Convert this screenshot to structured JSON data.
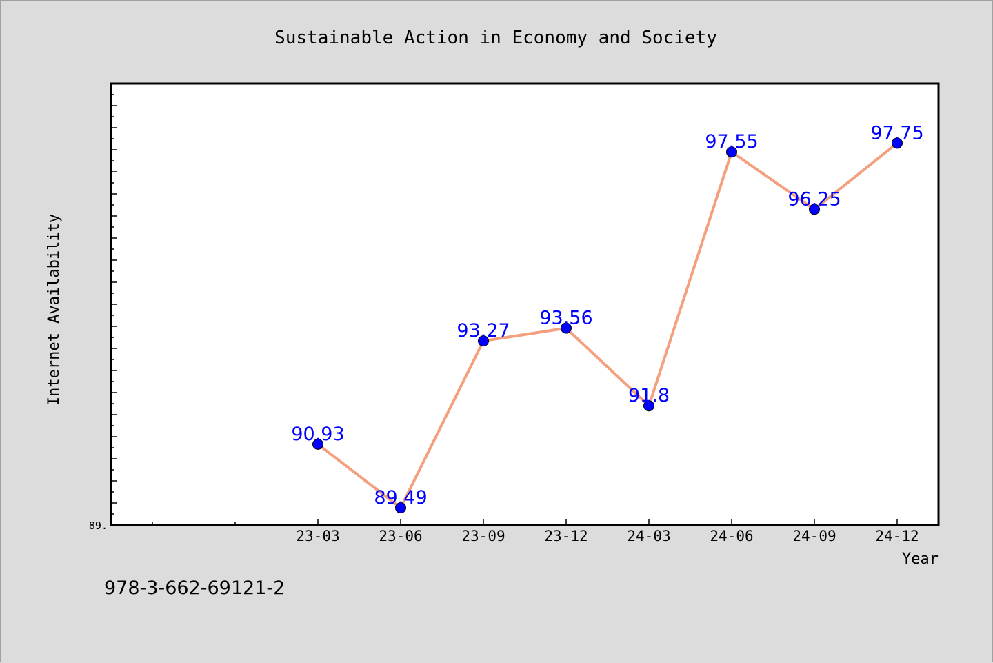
{
  "chart_data": {
    "type": "line",
    "title": "Sustainable Action in Economy and Society",
    "xlabel": "Year",
    "ylabel": "Internet Availability",
    "categories": [
      "23-03",
      "23-06",
      "23-09",
      "23-12",
      "24-03",
      "24-06",
      "24-09",
      "24-12"
    ],
    "values": [
      90.93,
      89.49,
      93.27,
      93.56,
      91.8,
      97.55,
      96.25,
      97.75
    ],
    "data_labels": [
      "90.93",
      "89.49",
      "93.27",
      "93.56",
      "91.8",
      "97.55",
      "96.25",
      "97.75"
    ],
    "y_tick_label": "89.",
    "ylim": [
      89.1,
      99.1
    ],
    "grid": false,
    "line_color": "#f4a07f",
    "marker_color": "#0000ff",
    "label_color": "#0000ff"
  },
  "footer": {
    "isbn": "978-3-662-69121-2"
  }
}
